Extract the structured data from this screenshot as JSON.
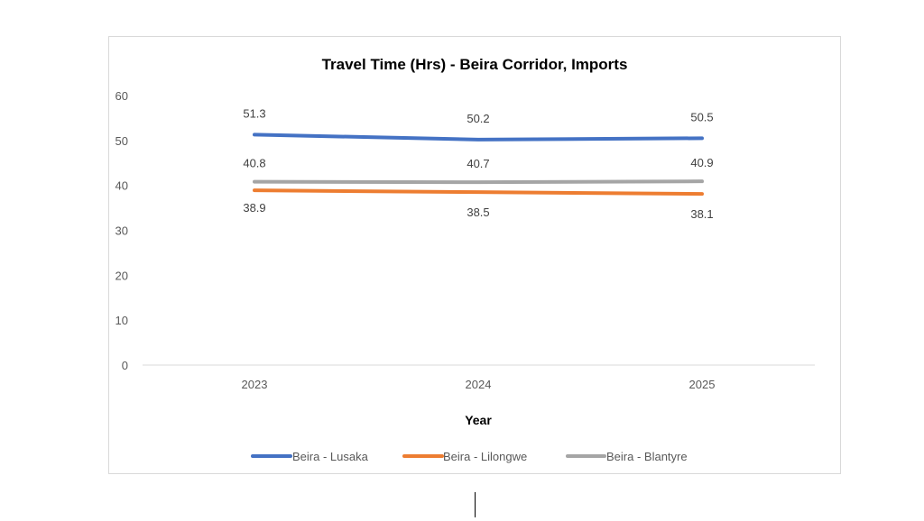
{
  "chart_data": {
    "type": "line",
    "title": "Travel Time (Hrs) - Beira Corridor, Imports",
    "xlabel": "Year",
    "ylabel": "",
    "categories": [
      "2023",
      "2024",
      "2025"
    ],
    "ylim": [
      0,
      60
    ],
    "yticks": [
      "0",
      "10",
      "20",
      "30",
      "40",
      "50",
      "60"
    ],
    "grid": false,
    "legend_position": "bottom",
    "series": [
      {
        "name": "Beira - Lusaka",
        "color": "#4472c4",
        "values": [
          51.3,
          50.2,
          50.5
        ],
        "labels": [
          "51.3",
          "50.2",
          "50.5"
        ]
      },
      {
        "name": "Beira - Lilongwe",
        "color": "#ed7d31",
        "values": [
          38.9,
          38.5,
          38.1
        ],
        "labels": [
          "38.9",
          "38.5",
          "38.1"
        ]
      },
      {
        "name": "Beira - Blantyre",
        "color": "#a5a5a5",
        "values": [
          40.8,
          40.7,
          40.9
        ],
        "labels": [
          "40.8",
          "40.7",
          "40.9"
        ]
      }
    ]
  }
}
